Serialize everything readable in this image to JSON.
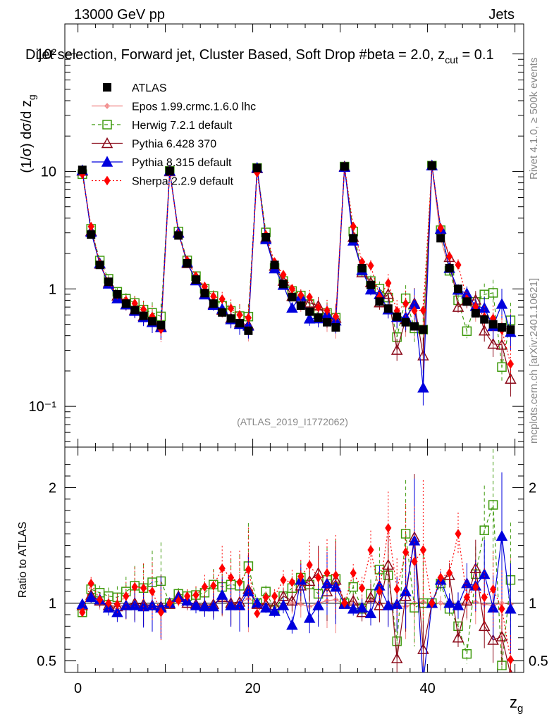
{
  "header": {
    "energy": "13000 GeV pp",
    "category": "Jets",
    "selection": "Dijet selection, Forward jet, Cluster Based, Soft Drop #beta = 2.0, z",
    "selection_sub": "cut",
    "selection_tail": " = 0.1",
    "analysis_id": "(ATLAS_2019_I1772062)",
    "side_rivet": "Rivet 4.1.0, ≥ 500k events",
    "side_site": "mcplots.cern.ch [arXiv:2401.10621]"
  },
  "chart_data": {
    "type": "line",
    "ylabel_main": "(1/σ) dσ/d z",
    "ylabel_main_sub": "g",
    "ylabel_ratio": "Ratio to ATLAS",
    "xlabel": "z",
    "xlabel_sub": "g",
    "x_range": [
      -1.5,
      51.0
    ],
    "y_range_main": [
      0.045,
      180
    ],
    "y_range_ratio": [
      0.4,
      2.35
    ],
    "x_ticks": [
      "0",
      "20",
      "40"
    ],
    "y_ticks_main": [
      "10⁻¹",
      "1",
      "10",
      "10²"
    ],
    "y_ticks_ratio": [
      "0.5",
      "1",
      "2"
    ],
    "x": [
      0.5,
      1.5,
      2.5,
      3.5,
      4.5,
      5.5,
      6.5,
      7.5,
      8.5,
      9.5,
      10.5,
      11.5,
      12.5,
      13.5,
      14.5,
      15.5,
      16.5,
      17.5,
      18.5,
      19.5,
      20.5,
      21.5,
      22.5,
      23.5,
      24.5,
      25.5,
      26.5,
      27.5,
      28.5,
      29.5,
      30.5,
      31.5,
      32.5,
      33.5,
      34.5,
      35.5,
      36.5,
      37.5,
      38.5,
      39.5,
      40.5,
      41.5,
      42.5,
      43.5,
      44.5,
      45.5,
      46.5,
      47.5,
      48.5,
      49.5
    ],
    "atlas": [
      10.3,
      2.9,
      1.6,
      1.15,
      0.9,
      0.75,
      0.66,
      0.59,
      0.53,
      0.49,
      10.1,
      2.85,
      1.65,
      1.2,
      0.92,
      0.75,
      0.63,
      0.56,
      0.51,
      0.44,
      10.7,
      2.75,
      1.6,
      1.1,
      0.85,
      0.72,
      0.64,
      0.57,
      0.52,
      0.47,
      11.0,
      2.7,
      1.5,
      1.08,
      0.78,
      0.68,
      0.58,
      0.52,
      0.48,
      0.45,
      11.2,
      2.7,
      1.5,
      1.0,
      0.78,
      0.62,
      0.55,
      0.5,
      0.47,
      0.45
    ],
    "legend": [
      {
        "name": "ATLAS",
        "color": "#000000"
      },
      {
        "name": "Epos 1.99.crmc.1.6.0 lhc",
        "color": "#f08080"
      },
      {
        "name": "Herwig 7.2.1 default",
        "color": "#3f9a0e"
      },
      {
        "name": "Pythia 6.428 370",
        "color": "#8b0a1a"
      },
      {
        "name": "Pythia 8.315 default",
        "color": "#0000dd"
      },
      {
        "name": "Sherpa 2.2.9 default",
        "color": "#ff0000"
      }
    ],
    "ratios": {
      "epos": [
        0.98,
        1.08,
        1.0,
        0.98,
        0.95,
        0.97,
        0.99,
        0.98,
        0.98,
        0.97,
        1.0,
        1.06,
        0.99,
        1.0,
        0.98,
        0.99,
        1.04,
        0.98,
        1.0,
        1.04,
        1.0,
        0.98,
        0.97,
        0.99,
        1.0,
        0.99,
        0.97,
        1.0,
        1.02,
        1.03,
        0.99,
        1.0,
        0.98,
        1.02,
        0.99,
        1.0,
        0.98,
        0.97,
        1.0,
        1.01,
        0.99,
        1.0,
        0.97,
        0.98,
        1.0,
        1.01,
        0.99,
        0.98,
        1.0,
        0.99
      ],
      "herwig": [
        0.92,
        1.12,
        1.09,
        1.06,
        1.05,
        1.1,
        1.15,
        1.13,
        1.18,
        1.19,
        1.0,
        1.08,
        1.06,
        1.07,
        1.09,
        1.16,
        1.14,
        1.16,
        1.15,
        1.32,
        1.0,
        1.1,
        0.94,
        1.06,
        1.13,
        1.22,
        1.16,
        1.08,
        1.2,
        1.21,
        1.0,
        1.14,
        0.95,
        1.08,
        1.29,
        1.24,
        0.67,
        1.6,
        0.96,
        1.0,
        1.0,
        1.17,
        0.95,
        0.8,
        0.56,
        1.25,
        1.63,
        1.85,
        0.46,
        1.2
      ],
      "pythia6": [
        0.98,
        1.07,
        1.02,
        0.98,
        0.97,
        0.98,
        1.0,
        0.99,
        0.98,
        0.97,
        0.99,
        1.06,
        1.0,
        0.99,
        0.98,
        0.99,
        1.05,
        1.0,
        1.01,
        1.12,
        0.99,
        0.99,
        0.98,
        1.06,
        1.02,
        1.15,
        1.19,
        1.26,
        1.1,
        1.2,
        1.0,
        1.02,
        0.92,
        1.05,
        0.98,
        1.33,
        0.52,
        1.06,
        1.57,
        0.6,
        1.0,
        1.2,
        1.24,
        0.7,
        1.02,
        1.3,
        0.8,
        0.68,
        0.71,
        0.38
      ],
      "pythia8": [
        0.99,
        1.05,
        1.03,
        0.96,
        0.92,
        0.98,
        0.98,
        0.97,
        0.98,
        0.96,
        1.0,
        1.05,
        1.02,
        0.98,
        0.97,
        0.97,
        1.07,
        0.98,
        0.98,
        1.1,
        1.0,
        0.96,
        0.93,
        0.98,
        0.81,
        1.2,
        0.87,
        0.98,
        1.17,
        1.14,
        0.99,
        0.95,
        0.96,
        0.91,
        1.15,
        0.98,
        0.99,
        1.1,
        1.54,
        0.32,
        1.0,
        1.2,
        1.0,
        0.98,
        1.17,
        1.15,
        1.25,
        0.96,
        1.58,
        0.95
      ],
      "sherpa": [
        0.92,
        1.17,
        1.03,
        1.0,
        0.99,
        1.06,
        1.14,
        1.13,
        1.1,
        0.92,
        1.0,
        1.02,
        1.06,
        1.07,
        1.14,
        1.15,
        1.3,
        1.22,
        1.18,
        1.29,
        0.91,
        1.05,
        1.06,
        1.2,
        1.18,
        1.23,
        1.33,
        1.22,
        1.26,
        1.24,
        1.0,
        1.26,
        1.13,
        1.46,
        1.1,
        1.65,
        1.12,
        1.44,
        1.36,
        1.46,
        1.0,
        1.22,
        1.26,
        1.6,
        1.05,
        1.14,
        1.05,
        1.12,
        0.95,
        0.51
      ]
    }
  }
}
